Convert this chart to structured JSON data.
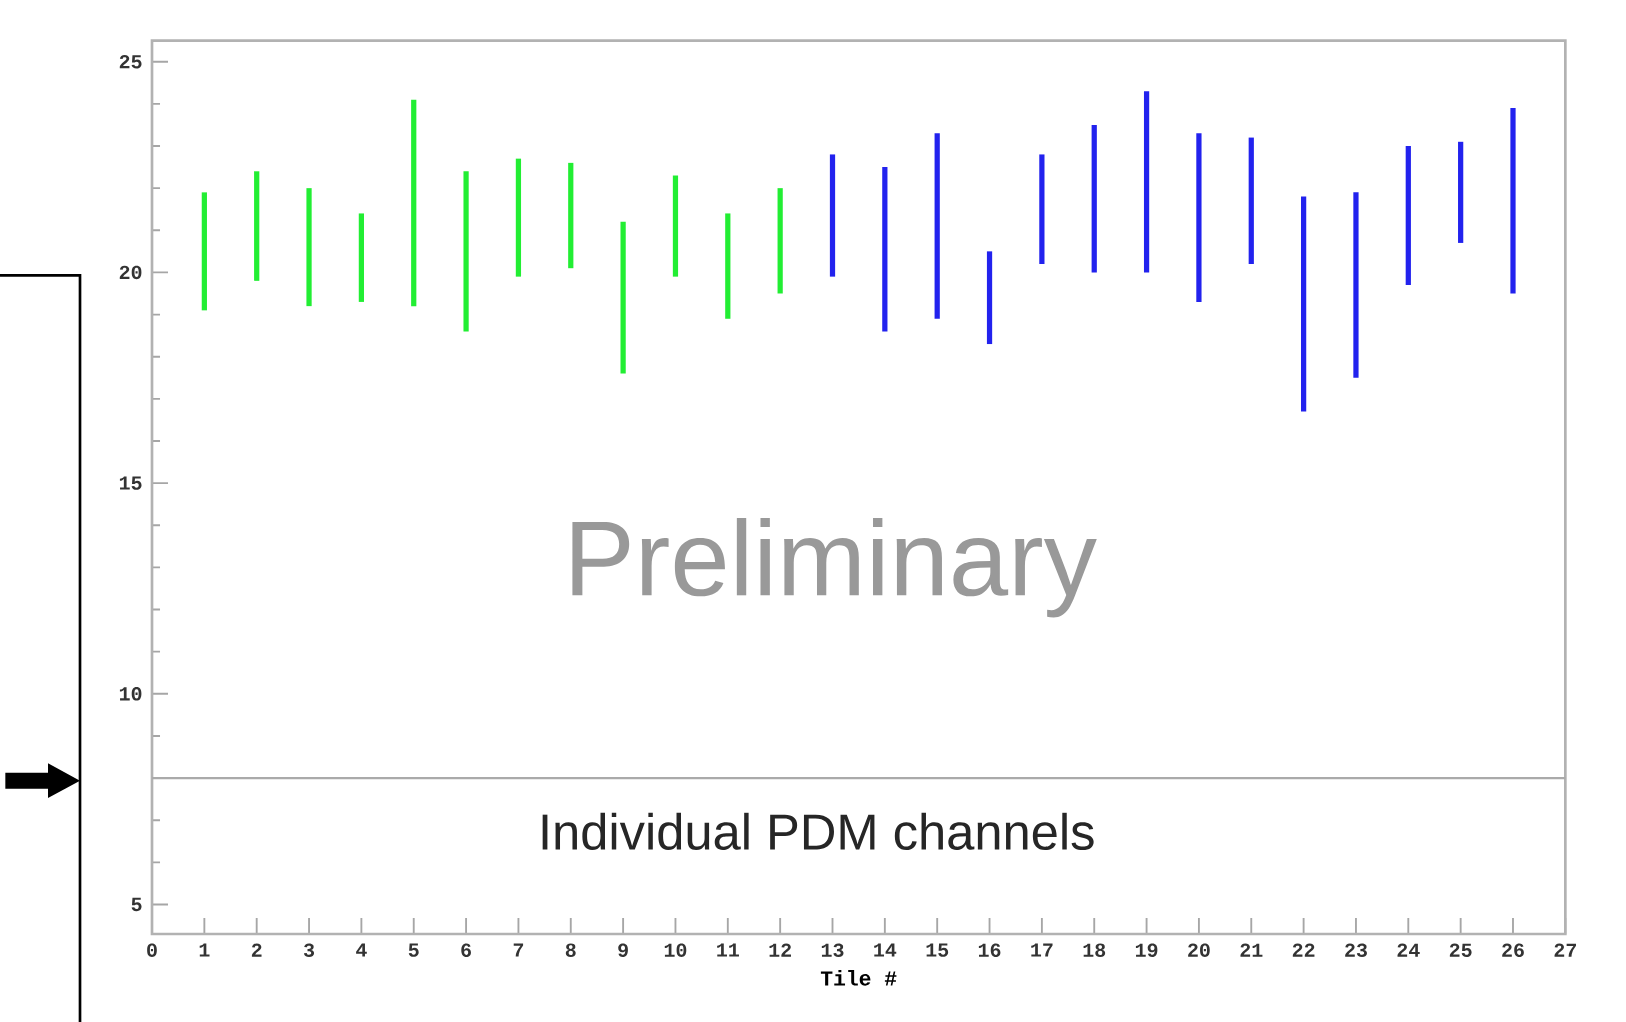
{
  "chart_data": {
    "type": "bar",
    "xlabel": "Tile #",
    "series": [
      {
        "color": "#22ee33",
        "x": [
          1,
          2,
          3,
          4,
          5,
          6,
          7,
          8,
          9,
          10,
          11,
          12
        ],
        "base": [
          19.1,
          19.8,
          19.2,
          19.3,
          19.2,
          18.6,
          19.9,
          20.1,
          17.6,
          19.9,
          18.9,
          19.5
        ],
        "values": [
          2.8,
          2.6,
          2.8,
          2.1,
          4.9,
          3.8,
          2.8,
          2.5,
          3.6,
          2.4,
          2.5,
          2.5
        ]
      },
      {
        "color": "#2222ee",
        "x": [
          13,
          14,
          15,
          16,
          17,
          18,
          19,
          20,
          21,
          22,
          23,
          24,
          25,
          26
        ],
        "base": [
          19.9,
          18.6,
          18.9,
          18.3,
          20.2,
          20.0,
          20.0,
          19.3,
          20.2,
          16.7,
          17.5,
          19.7,
          20.7,
          19.5
        ],
        "values": [
          2.9,
          3.9,
          4.4,
          2.2,
          2.6,
          3.5,
          4.3,
          4.0,
          3.0,
          5.1,
          4.4,
          3.3,
          2.4,
          4.4
        ]
      }
    ],
    "xlim": [
      0,
      27
    ],
    "xticks": [
      0,
      1,
      2,
      3,
      4,
      5,
      6,
      7,
      8,
      9,
      10,
      11,
      12,
      13,
      14,
      15,
      16,
      17,
      18,
      19,
      20,
      21,
      22,
      23,
      24,
      25,
      26,
      27
    ],
    "ylim": [
      4.3,
      25.5
    ],
    "yticks": [
      5,
      10,
      15,
      20,
      25
    ],
    "ref_lines": [
      {
        "axis": "y",
        "value": 8,
        "label": "Individual PDM channels",
        "color": "#aaaaaa"
      }
    ],
    "annotations": [
      "Preliminary"
    ]
  }
}
